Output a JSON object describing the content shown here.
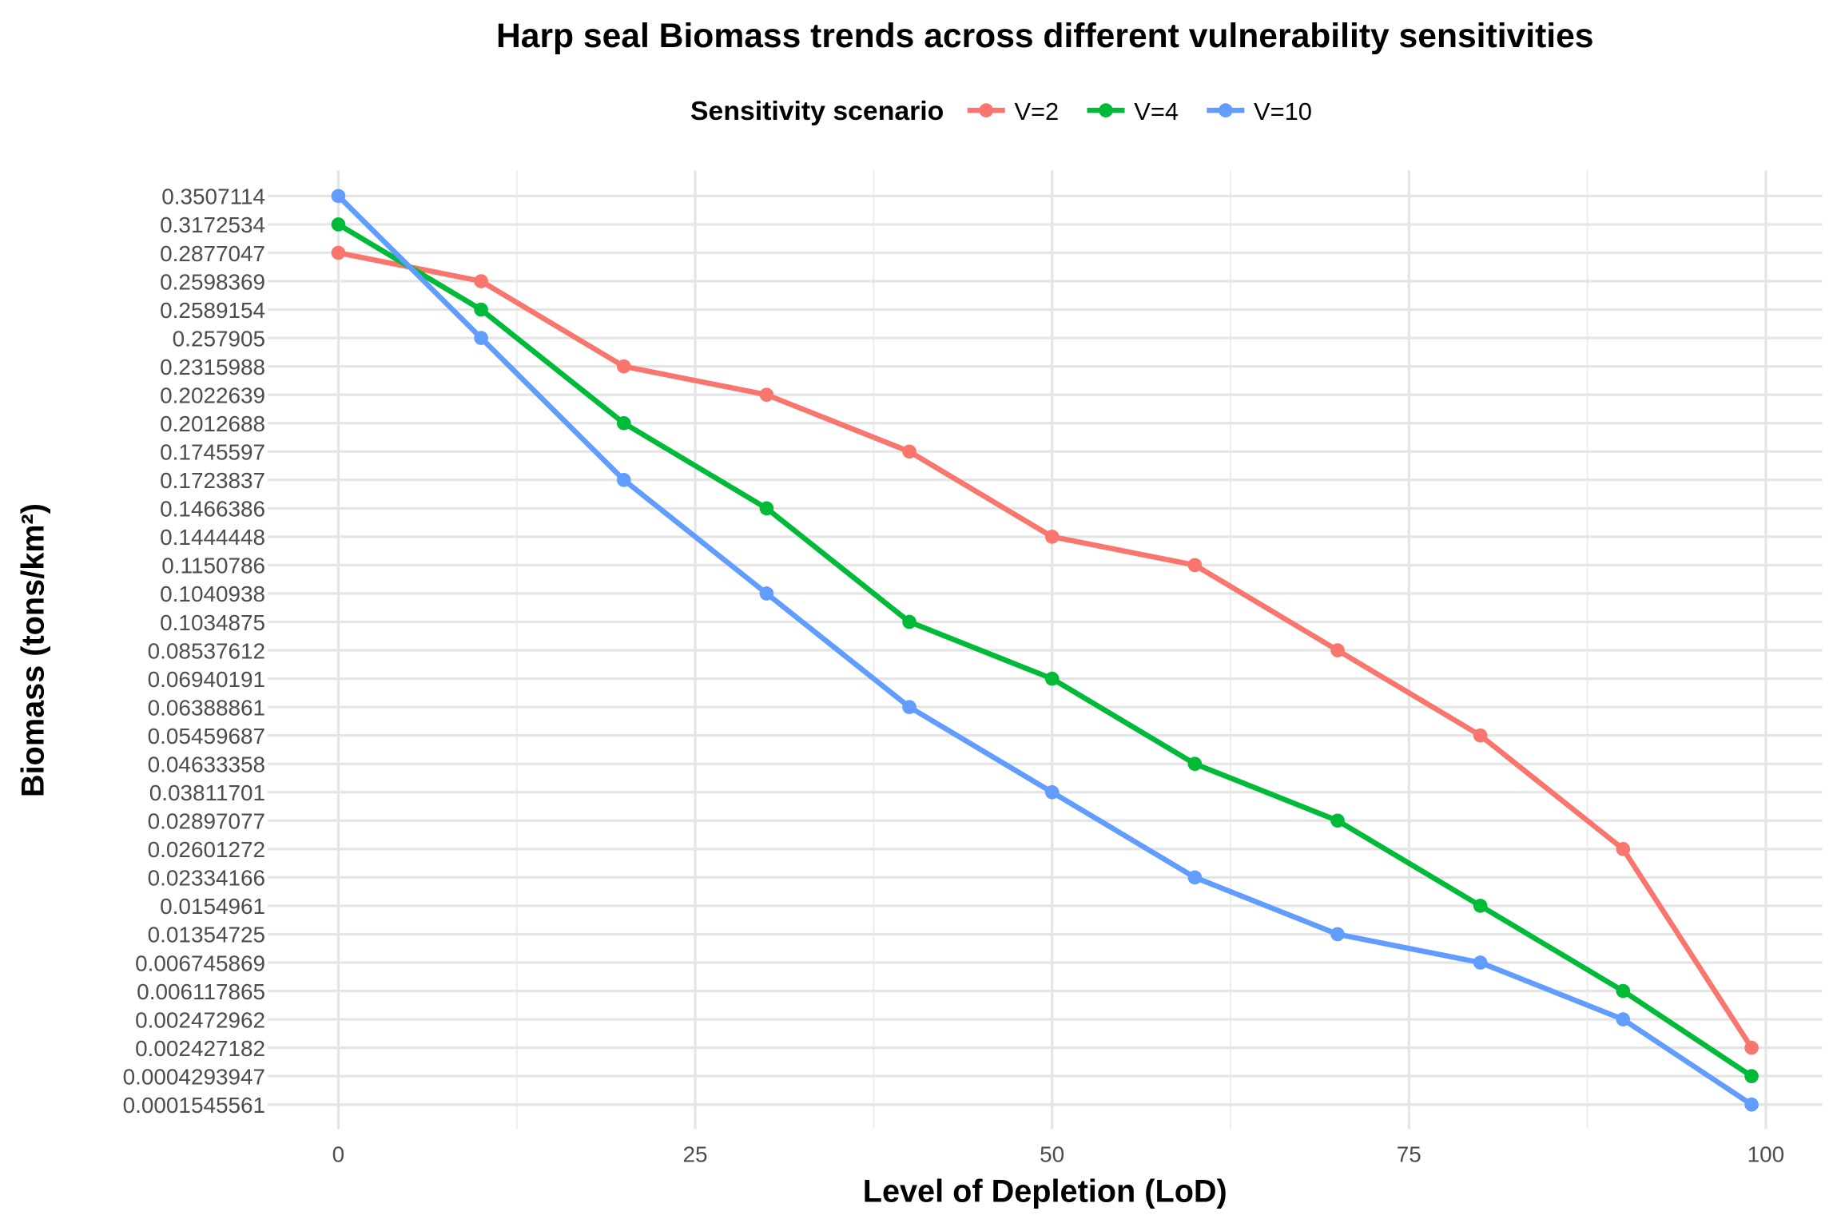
{
  "chart_data": {
    "type": "line",
    "title": "Harp seal Biomass trends across different vulnerability sensitivities",
    "x_label": "Level of Depletion (LoD)",
    "y_label": "Biomass (tons/km²)",
    "legend_title": "Sensitivity scenario",
    "legend_position": "top",
    "grid": true,
    "y_scale": "discrete",
    "x": [
      0,
      10,
      20,
      30,
      40,
      50,
      60,
      70,
      80,
      90,
      99
    ],
    "xlim": [
      -4.95,
      103.95
    ],
    "xticks": [
      0,
      25,
      50,
      75,
      100
    ],
    "yticks": [
      0.0001545561,
      0.0004293947,
      0.002427182,
      0.002472962,
      0.006117865,
      0.006745869,
      0.01354725,
      0.0154961,
      0.02334166,
      0.02601272,
      0.02897077,
      0.03811701,
      0.04633358,
      0.05459687,
      0.06388861,
      0.06940191,
      0.08537612,
      0.1034875,
      0.1040938,
      0.1150786,
      0.1444448,
      0.1466386,
      0.1723837,
      0.1745597,
      0.2012688,
      0.2022639,
      0.2315988,
      0.257905,
      0.2589154,
      0.2598369,
      0.2877047,
      0.3172534,
      0.3507114
    ],
    "series": [
      {
        "name": "V=2",
        "color": "#F8766D",
        "values": [
          0.2877047,
          0.2598369,
          0.2315988,
          0.2022639,
          0.1745597,
          0.1444448,
          0.1150786,
          0.08537612,
          0.05459687,
          0.02601272,
          0.002427182
        ]
      },
      {
        "name": "V=4",
        "color": "#00BA38",
        "values": [
          0.3172534,
          0.2589154,
          0.2012688,
          0.1466386,
          0.1034875,
          0.06940191,
          0.04633358,
          0.02897077,
          0.0154961,
          0.006117865,
          0.0004293947
        ]
      },
      {
        "name": "V=10",
        "color": "#619CFF",
        "values": [
          0.3507114,
          0.257905,
          0.1723837,
          0.1040938,
          0.06388861,
          0.03811701,
          0.02334166,
          0.01354725,
          0.006745869,
          0.002472962,
          0.0001545561
        ]
      }
    ]
  }
}
